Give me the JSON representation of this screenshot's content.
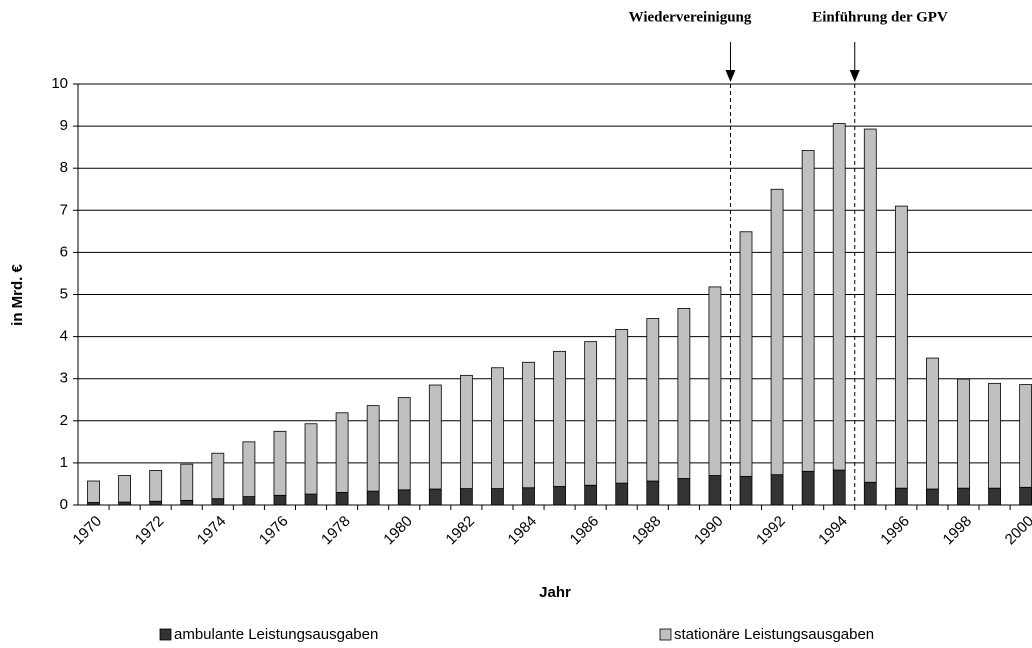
{
  "chart_data": {
    "type": "bar",
    "stacked": true,
    "x_label": "Jahr",
    "y_label": "in Mrd. €",
    "categories": [
      "1970",
      null,
      "1972",
      null,
      "1974",
      null,
      "1976",
      null,
      "1978",
      null,
      "1980",
      null,
      "1982",
      null,
      "1984",
      null,
      "1986",
      null,
      "1988",
      null,
      "1990",
      null,
      "1992",
      null,
      "1994",
      null,
      "1996",
      null,
      "1998",
      null,
      "2000"
    ],
    "series": [
      {
        "name": "ambulante Leistungsausgaben",
        "color": "#333333",
        "values": [
          0.06,
          0.07,
          0.09,
          0.11,
          0.15,
          0.2,
          0.23,
          0.26,
          0.3,
          0.33,
          0.36,
          0.38,
          0.39,
          0.39,
          0.41,
          0.44,
          0.47,
          0.52,
          0.57,
          0.63,
          0.7,
          0.68,
          0.72,
          0.8,
          0.83,
          0.54,
          0.4,
          0.38,
          0.4,
          0.4,
          0.42
        ]
      },
      {
        "name": "stationäre Leistungsausgaben",
        "color": "#c0c0c0",
        "values": [
          0.51,
          0.63,
          0.73,
          0.86,
          1.08,
          1.3,
          1.52,
          1.67,
          1.89,
          2.03,
          2.19,
          2.47,
          2.69,
          2.87,
          2.98,
          3.21,
          3.41,
          3.65,
          3.86,
          4.04,
          4.48,
          5.81,
          6.78,
          7.62,
          8.23,
          8.39,
          6.7,
          3.11,
          2.59,
          2.49,
          2.44
        ]
      }
    ],
    "ylim": [
      0,
      10
    ],
    "yticks": [
      0,
      1,
      2,
      3,
      4,
      5,
      6,
      7,
      8,
      9,
      10
    ],
    "grid": true,
    "legend": "bottom",
    "annotations": [
      "Wiedervereinigung",
      "Einführung der GPV"
    ]
  }
}
